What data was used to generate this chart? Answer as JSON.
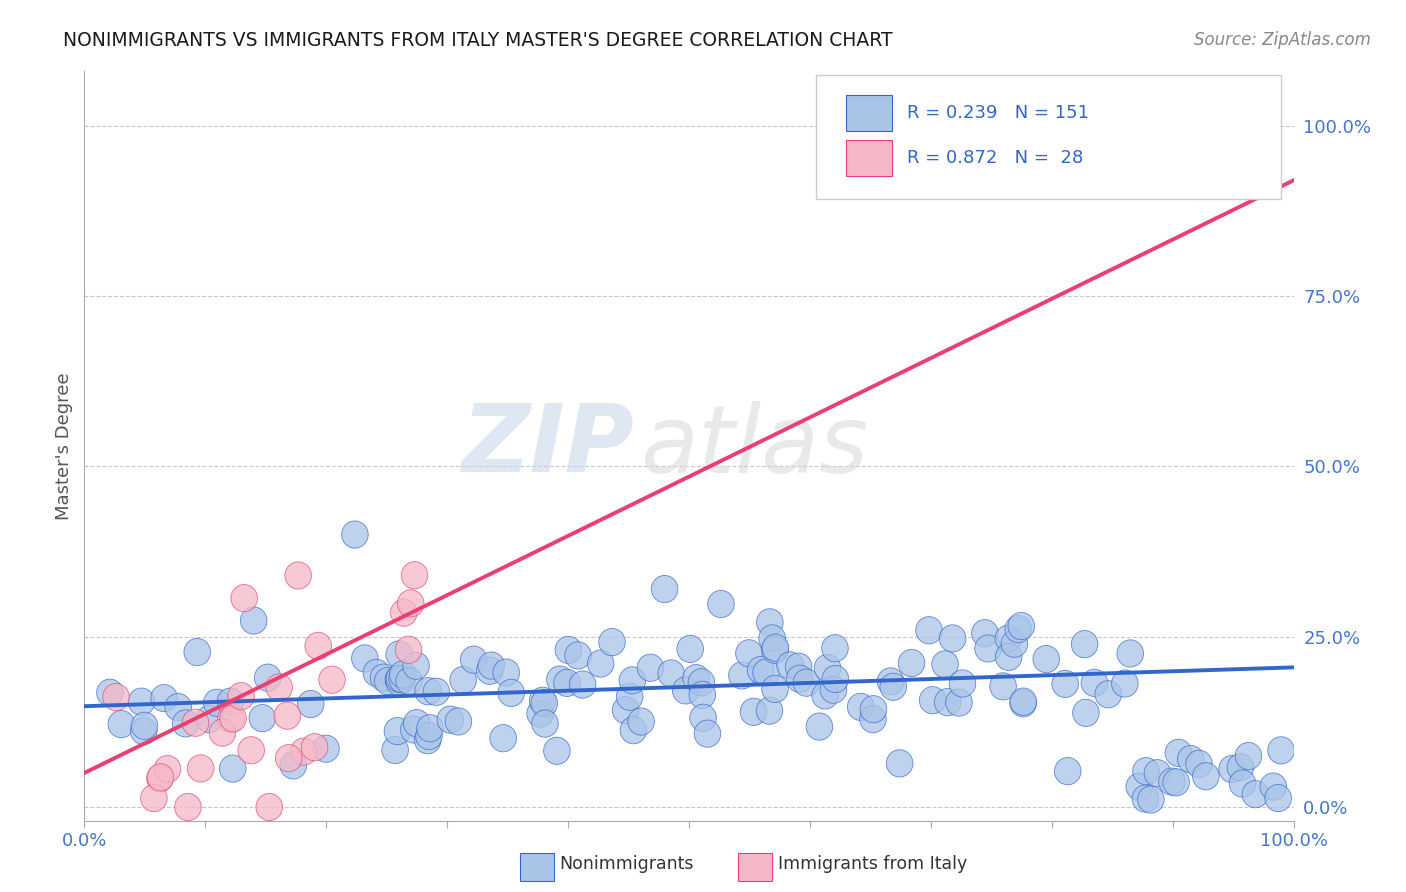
{
  "title": "NONIMMIGRANTS VS IMMIGRANTS FROM ITALY MASTER'S DEGREE CORRELATION CHART",
  "source_text": "Source: ZipAtlas.com",
  "ylabel": "Master's Degree",
  "watermark_zip": "ZIP",
  "watermark_atlas": "atlas",
  "blue_R": 0.239,
  "blue_N": 151,
  "pink_R": 0.872,
  "pink_N": 28,
  "blue_color": "#aac4e8",
  "pink_color": "#f5b8c8",
  "blue_line_color": "#3366cc",
  "pink_line_color": "#e84070",
  "blue_label": "Nonimmigrants",
  "pink_label": "Immigrants from Italy",
  "legend_color": "#3366cc",
  "title_color": "#1a1a1a",
  "axis_tick_color": "#4477cc",
  "background_color": "#ffffff",
  "grid_color": "#c8c8c8",
  "xlim": [
    0.0,
    1.0
  ],
  "ylim": [
    -0.02,
    1.08
  ],
  "yticks": [
    0.0,
    0.25,
    0.5,
    0.75,
    1.0
  ],
  "ytick_labels": [
    "0.0%",
    "25.0%",
    "50.0%",
    "75.0%",
    "100.0%"
  ],
  "blue_line_y_start": 0.148,
  "blue_line_y_end": 0.205,
  "pink_line_y_start": 0.05,
  "pink_line_y_end": 0.92
}
